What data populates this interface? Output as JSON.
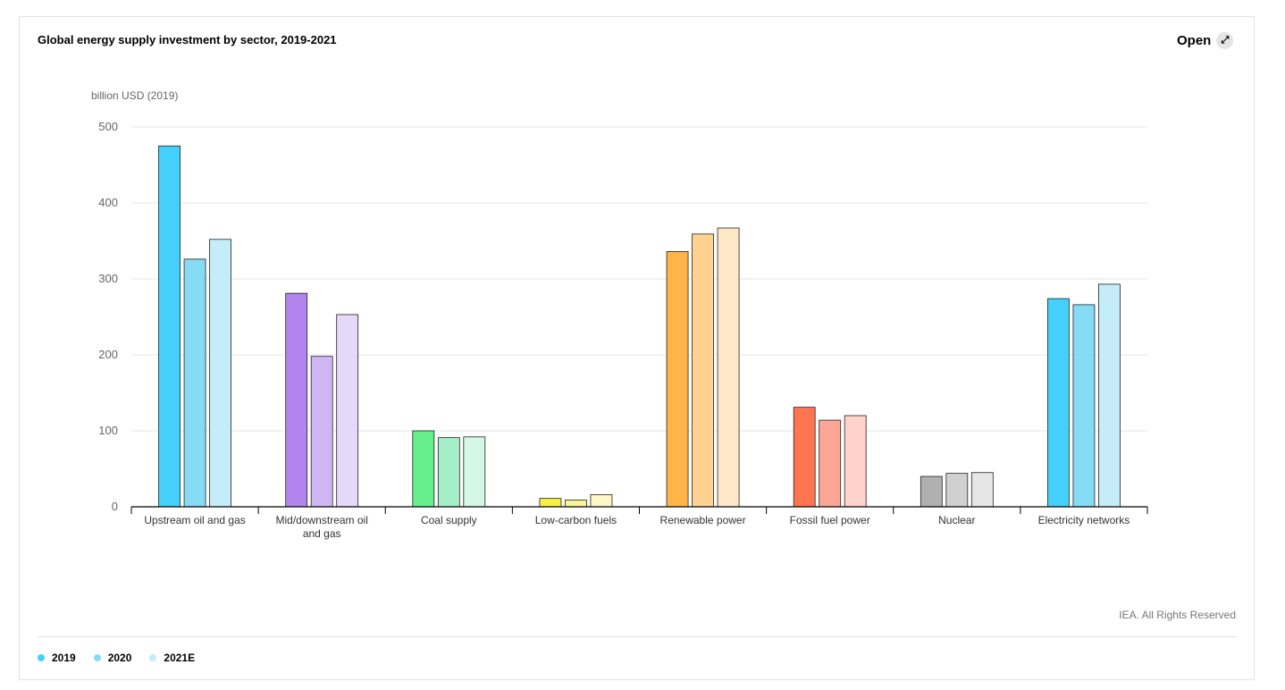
{
  "header": {
    "title": "Global energy supply investment by sector, 2019-2021",
    "open_label": "Open",
    "open_icon": "expand-arrow-icon"
  },
  "credit": "IEA. All Rights Reserved",
  "chart_data": {
    "type": "bar",
    "title": "Global energy supply investment by sector, 2019-2021",
    "ylabel": "billion USD (2019)",
    "xlabel": "",
    "ylim": [
      0,
      500
    ],
    "yticks": [
      0,
      100,
      200,
      300,
      400,
      500
    ],
    "grid": true,
    "legend_placement": "bottom-left",
    "categories": [
      "Upstream oil and gas",
      "Mid/downstream oil and gas",
      "Coal supply",
      "Low-carbon fuels",
      "Renewable power",
      "Fossil fuel power",
      "Nuclear",
      "Electricity networks"
    ],
    "category_lines": [
      [
        "Upstream oil and gas"
      ],
      [
        "Mid/downstream oil",
        "and gas"
      ],
      [
        "Coal supply"
      ],
      [
        "Low-carbon fuels"
      ],
      [
        "Renewable power"
      ],
      [
        "Fossil fuel power"
      ],
      [
        "Nuclear"
      ],
      [
        "Electricity networks"
      ]
    ],
    "series": [
      {
        "name": "2019",
        "values": [
          475,
          281,
          100,
          11,
          336,
          131,
          40,
          274
        ]
      },
      {
        "name": "2020",
        "values": [
          326,
          198,
          91,
          9,
          359,
          114,
          44,
          266
        ]
      },
      {
        "name": "2021E",
        "values": [
          352,
          253,
          92,
          16,
          367,
          120,
          45,
          293
        ]
      }
    ],
    "legend_colors": [
      "#44d0fa",
      "#86dcf5",
      "#c4ecf9"
    ],
    "bar_colors": [
      [
        "#44d0fa",
        "#86dcf5",
        "#c4ecf9"
      ],
      [
        "#b185ed",
        "#d0b6f3",
        "#e6d8f8"
      ],
      [
        "#66ee8c",
        "#a4efc8",
        "#d4f7e6"
      ],
      [
        "#f7f045",
        "#fbf39a",
        "#fdf6c6"
      ],
      [
        "#ffb547",
        "#ffd38f",
        "#ffe8c8"
      ],
      [
        "#ff7550",
        "#ffa595",
        "#ffd3cb"
      ],
      [
        "#b0b0b0",
        "#d0d0d0",
        "#e6e6e6"
      ],
      [
        "#44d0fa",
        "#86dcf5",
        "#c4ecf9"
      ]
    ]
  }
}
